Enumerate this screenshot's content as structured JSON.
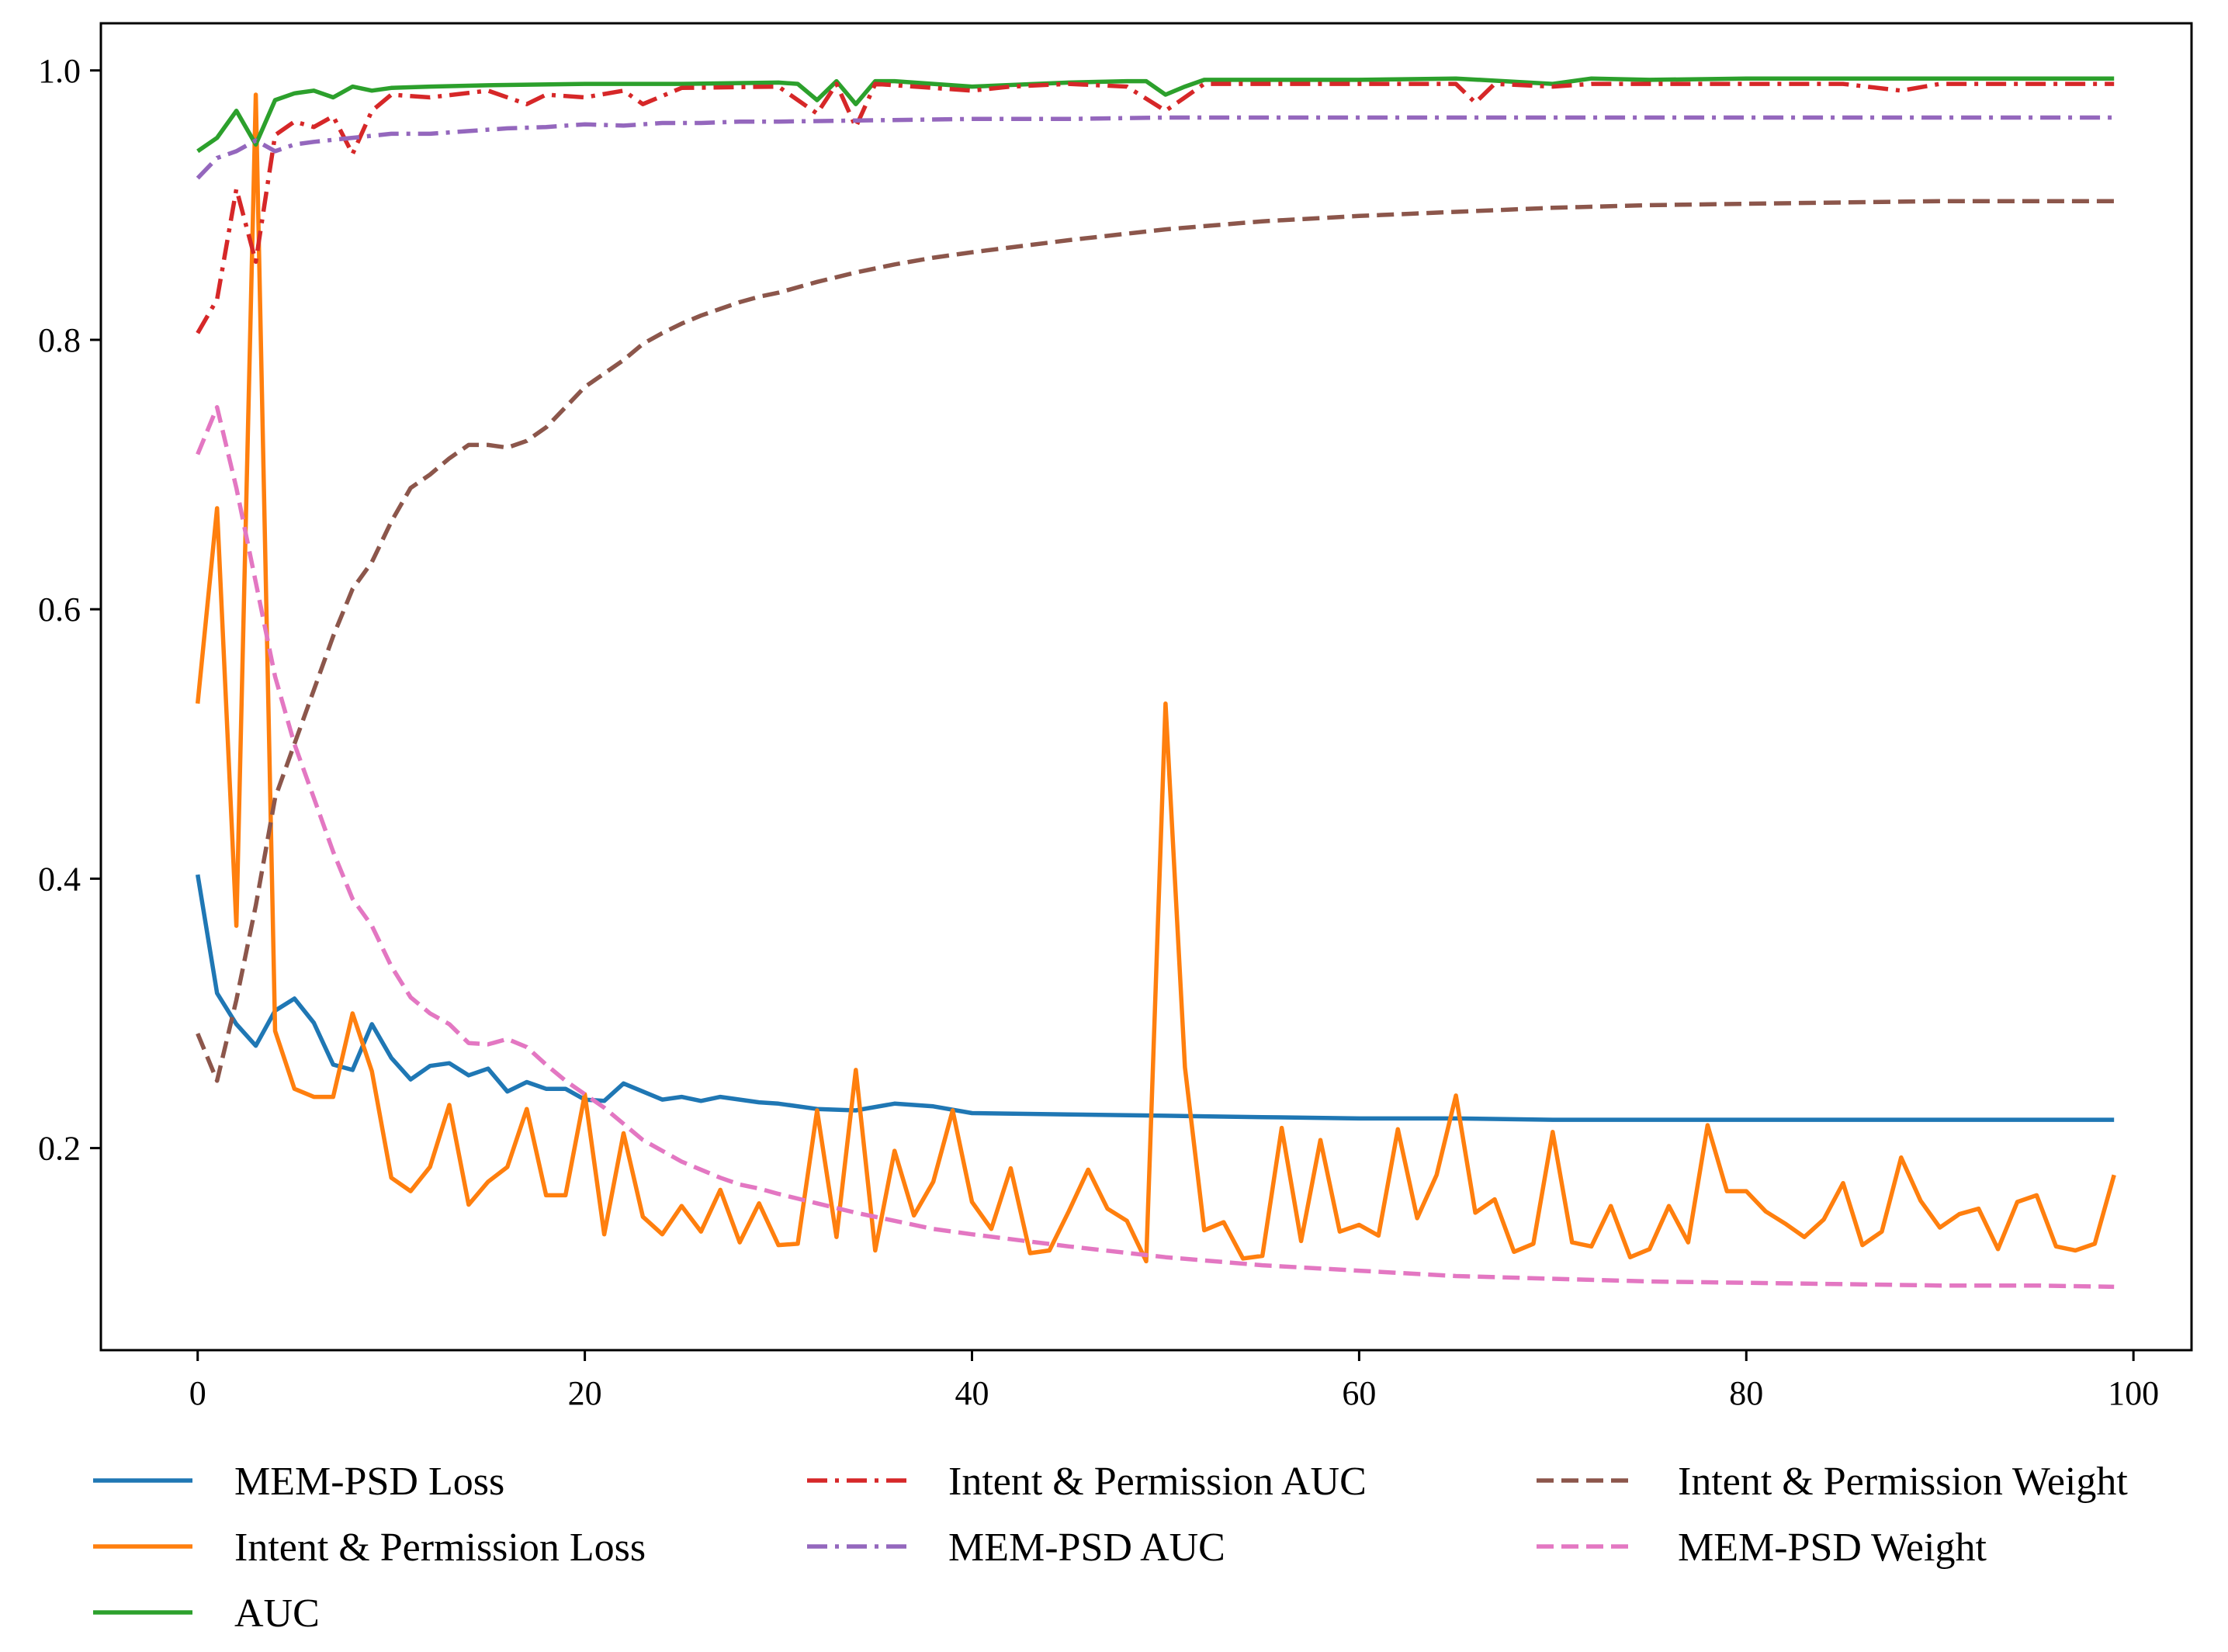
{
  "chart_data": {
    "type": "line",
    "title": "",
    "xlabel": "",
    "ylabel": "",
    "xlim": [
      -5,
      103
    ],
    "ylim": [
      0.05,
      1.035
    ],
    "xticks": [
      0,
      20,
      40,
      60,
      80,
      100
    ],
    "yticks": [
      0.2,
      0.4,
      0.6,
      0.8,
      1.0
    ],
    "xtick_labels": [
      "0",
      "20",
      "40",
      "60",
      "80",
      "100"
    ],
    "ytick_labels": [
      "0.2",
      "0.4",
      "0.6",
      "0.8",
      "1.0"
    ],
    "legend_position": "below",
    "series": [
      {
        "name": "MEM-PSD Loss",
        "color": "#1f77b4",
        "style": "solid",
        "x": [
          0,
          1,
          2,
          3,
          4,
          5,
          6,
          7,
          8,
          9,
          10,
          11,
          12,
          13,
          14,
          15,
          16,
          17,
          18,
          19,
          20,
          21,
          22,
          23,
          24,
          25,
          26,
          27,
          28,
          29,
          30,
          32,
          34,
          36,
          38,
          40,
          45,
          50,
          55,
          60,
          65,
          70,
          80,
          90,
          99
        ],
        "y": [
          0.403,
          0.315,
          0.292,
          0.276,
          0.302,
          0.311,
          0.293,
          0.262,
          0.258,
          0.292,
          0.267,
          0.251,
          0.261,
          0.263,
          0.254,
          0.259,
          0.242,
          0.249,
          0.244,
          0.244,
          0.236,
          0.235,
          0.248,
          0.242,
          0.236,
          0.238,
          0.235,
          0.238,
          0.236,
          0.234,
          0.233,
          0.229,
          0.228,
          0.233,
          0.231,
          0.226,
          0.225,
          0.224,
          0.223,
          0.222,
          0.222,
          0.221,
          0.221,
          0.221,
          0.221
        ]
      },
      {
        "name": "Intent & Permission Loss",
        "color": "#ff7f0e",
        "style": "solid",
        "x": [
          0,
          1,
          2,
          3,
          4,
          5,
          6,
          7,
          8,
          9,
          10,
          11,
          12,
          13,
          14,
          15,
          16,
          17,
          18,
          19,
          20,
          21,
          22,
          23,
          24,
          25,
          26,
          27,
          28,
          29,
          30,
          31,
          32,
          33,
          34,
          35,
          36,
          37,
          38,
          39,
          40,
          41,
          42,
          43,
          44,
          45,
          46,
          47,
          48,
          49,
          50,
          51,
          52,
          53,
          54,
          55,
          56,
          57,
          58,
          59,
          60,
          61,
          62,
          63,
          64,
          65,
          66,
          67,
          68,
          69,
          70,
          71,
          72,
          73,
          74,
          75,
          76,
          77,
          78,
          79,
          80,
          81,
          82,
          83,
          84,
          85,
          86,
          87,
          88,
          89,
          90,
          91,
          92,
          93,
          94,
          95,
          96,
          97,
          98,
          99
        ],
        "y": [
          0.53,
          0.675,
          0.365,
          0.982,
          0.287,
          0.244,
          0.238,
          0.238,
          0.3,
          0.257,
          0.178,
          0.168,
          0.186,
          0.232,
          0.158,
          0.175,
          0.186,
          0.229,
          0.165,
          0.165,
          0.24,
          0.136,
          0.211,
          0.149,
          0.136,
          0.157,
          0.138,
          0.169,
          0.13,
          0.159,
          0.128,
          0.129,
          0.228,
          0.134,
          0.258,
          0.124,
          0.198,
          0.15,
          0.175,
          0.228,
          0.16,
          0.14,
          0.185,
          0.122,
          0.124,
          0.153,
          0.184,
          0.155,
          0.146,
          0.116,
          0.53,
          0.26,
          0.139,
          0.145,
          0.118,
          0.12,
          0.215,
          0.131,
          0.206,
          0.138,
          0.143,
          0.135,
          0.214,
          0.148,
          0.18,
          0.239,
          0.152,
          0.162,
          0.123,
          0.129,
          0.212,
          0.13,
          0.127,
          0.157,
          0.119,
          0.125,
          0.157,
          0.13,
          0.217,
          0.168,
          0.168,
          0.153,
          0.144,
          0.134,
          0.147,
          0.174,
          0.128,
          0.138,
          0.193,
          0.161,
          0.141,
          0.151,
          0.155,
          0.125,
          0.16,
          0.165,
          0.127,
          0.124,
          0.129,
          0.18
        ]
      },
      {
        "name": "AUC",
        "color": "#2ca02c",
        "style": "solid",
        "x": [
          0,
          1,
          2,
          3,
          4,
          5,
          6,
          7,
          8,
          9,
          10,
          12,
          15,
          20,
          25,
          30,
          31,
          32,
          33,
          34,
          35,
          36,
          40,
          45,
          48,
          49,
          50,
          51,
          52,
          55,
          60,
          65,
          70,
          72,
          75,
          80,
          85,
          90,
          95,
          99
        ],
        "y": [
          0.94,
          0.95,
          0.97,
          0.945,
          0.978,
          0.983,
          0.985,
          0.98,
          0.988,
          0.985,
          0.987,
          0.988,
          0.989,
          0.99,
          0.99,
          0.991,
          0.99,
          0.978,
          0.992,
          0.975,
          0.992,
          0.992,
          0.988,
          0.991,
          0.992,
          0.992,
          0.982,
          0.988,
          0.993,
          0.993,
          0.993,
          0.994,
          0.99,
          0.994,
          0.993,
          0.994,
          0.994,
          0.994,
          0.994,
          0.994
        ]
      },
      {
        "name": "Intent & Permission AUC",
        "color": "#d62728",
        "style": "dashdot",
        "x": [
          0,
          1,
          2,
          3,
          4,
          5,
          6,
          7,
          8,
          9,
          10,
          12,
          15,
          17,
          18,
          20,
          22,
          23,
          25,
          30,
          32,
          33,
          34,
          35,
          40,
          42,
          45,
          48,
          50,
          51,
          52,
          55,
          60,
          65,
          66,
          67,
          70,
          72,
          75,
          80,
          85,
          88,
          90,
          95,
          99
        ],
        "y": [
          0.805,
          0.83,
          0.912,
          0.858,
          0.952,
          0.962,
          0.958,
          0.966,
          0.938,
          0.97,
          0.982,
          0.98,
          0.985,
          0.975,
          0.982,
          0.98,
          0.985,
          0.975,
          0.987,
          0.988,
          0.968,
          0.99,
          0.958,
          0.99,
          0.985,
          0.988,
          0.99,
          0.988,
          0.97,
          0.98,
          0.99,
          0.99,
          0.99,
          0.99,
          0.976,
          0.99,
          0.988,
          0.99,
          0.99,
          0.99,
          0.99,
          0.985,
          0.99,
          0.99,
          0.99
        ]
      },
      {
        "name": "MEM-PSD AUC",
        "color": "#9467bd",
        "style": "dashdot",
        "x": [
          0,
          1,
          2,
          3,
          4,
          5,
          6,
          8,
          10,
          12,
          14,
          16,
          18,
          20,
          22,
          24,
          26,
          28,
          30,
          35,
          40,
          45,
          50,
          60,
          70,
          80,
          90,
          99
        ],
        "y": [
          0.92,
          0.935,
          0.94,
          0.948,
          0.94,
          0.945,
          0.947,
          0.95,
          0.953,
          0.953,
          0.955,
          0.957,
          0.958,
          0.96,
          0.959,
          0.961,
          0.961,
          0.962,
          0.962,
          0.963,
          0.964,
          0.964,
          0.965,
          0.965,
          0.965,
          0.965,
          0.965,
          0.965
        ]
      },
      {
        "name": "Intent & Permission Weight",
        "color": "#8c564b",
        "style": "dashed",
        "x": [
          0,
          1,
          2,
          3,
          4,
          5,
          6,
          7,
          8,
          9,
          10,
          11,
          12,
          13,
          14,
          15,
          16,
          17,
          18,
          19,
          20,
          21,
          22,
          23,
          24,
          25,
          26,
          27,
          28,
          29,
          30,
          32,
          34,
          36,
          38,
          40,
          45,
          50,
          55,
          60,
          65,
          70,
          75,
          80,
          85,
          90,
          95,
          99
        ],
        "y": [
          0.285,
          0.25,
          0.31,
          0.38,
          0.46,
          0.5,
          0.54,
          0.58,
          0.615,
          0.635,
          0.665,
          0.69,
          0.7,
          0.712,
          0.722,
          0.722,
          0.72,
          0.725,
          0.735,
          0.75,
          0.765,
          0.775,
          0.785,
          0.797,
          0.805,
          0.812,
          0.818,
          0.823,
          0.828,
          0.832,
          0.835,
          0.843,
          0.85,
          0.856,
          0.861,
          0.865,
          0.874,
          0.882,
          0.888,
          0.892,
          0.895,
          0.898,
          0.9,
          0.901,
          0.902,
          0.903,
          0.903,
          0.903
        ]
      },
      {
        "name": "MEM-PSD Weight",
        "color": "#e377c2",
        "style": "dashed",
        "x": [
          0,
          1,
          2,
          3,
          4,
          5,
          6,
          7,
          8,
          9,
          10,
          11,
          12,
          13,
          14,
          15,
          16,
          17,
          18,
          19,
          20,
          21,
          22,
          23,
          24,
          25,
          26,
          27,
          28,
          29,
          30,
          32,
          34,
          36,
          38,
          40,
          45,
          50,
          55,
          60,
          65,
          70,
          75,
          80,
          85,
          90,
          95,
          99
        ],
        "y": [
          0.715,
          0.75,
          0.69,
          0.62,
          0.55,
          0.5,
          0.46,
          0.42,
          0.385,
          0.365,
          0.335,
          0.312,
          0.3,
          0.292,
          0.278,
          0.277,
          0.281,
          0.275,
          0.262,
          0.25,
          0.24,
          0.23,
          0.218,
          0.206,
          0.198,
          0.19,
          0.184,
          0.178,
          0.173,
          0.17,
          0.166,
          0.159,
          0.152,
          0.146,
          0.14,
          0.136,
          0.127,
          0.119,
          0.113,
          0.109,
          0.105,
          0.103,
          0.101,
          0.1,
          0.099,
          0.098,
          0.098,
          0.097
        ]
      }
    ]
  }
}
